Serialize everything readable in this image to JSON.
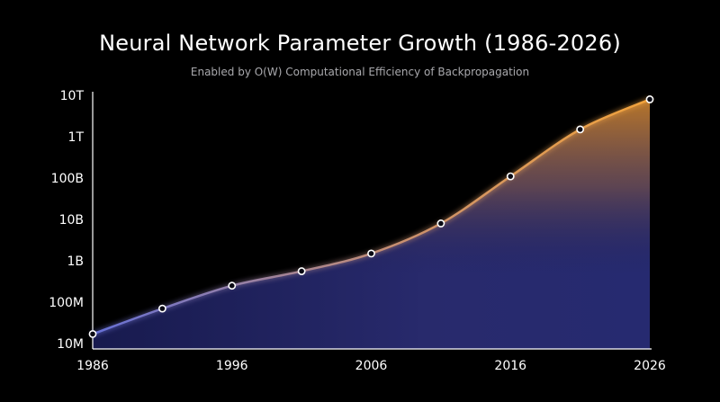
{
  "chart_data": {
    "type": "area",
    "title": "Neural Network Parameter Growth (1986-2026)",
    "subtitle": "Enabled by O(W) Computational Efficiency of Backpropagation",
    "xlabel": "",
    "ylabel": "",
    "x_ticks": [
      1986,
      1996,
      2006,
      2016,
      2026
    ],
    "y_ticks": [
      {
        "value": 10000000,
        "label": "10M"
      },
      {
        "value": 100000000,
        "label": "100M"
      },
      {
        "value": 1000000000,
        "label": "1B"
      },
      {
        "value": 10000000000,
        "label": "10B"
      },
      {
        "value": 100000000000,
        "label": "100B"
      },
      {
        "value": 1000000000000,
        "label": "1T"
      },
      {
        "value": 10000000000000,
        "label": "10T"
      }
    ],
    "y_scale": "log",
    "xlim": [
      1986,
      2026
    ],
    "ylim": [
      10000000,
      10000000000000
    ],
    "grid": false,
    "points": [
      {
        "x": 1986,
        "y": 17000000
      },
      {
        "x": 1991,
        "y": 70000000
      },
      {
        "x": 1996,
        "y": 250000000
      },
      {
        "x": 2001,
        "y": 560000000
      },
      {
        "x": 2006,
        "y": 1500000000
      },
      {
        "x": 2011,
        "y": 8000000000
      },
      {
        "x": 2016,
        "y": 110000000000
      },
      {
        "x": 2021,
        "y": 1500000000000
      },
      {
        "x": 2026,
        "y": 8000000000000
      }
    ],
    "colors": {
      "line_start": "#6670d8",
      "line_mid": "#a88aa8",
      "line_end": "#f2a33c",
      "fill_blue": "#24286e",
      "fill_orange": "#a5651e",
      "marker_stroke": "#ffffff",
      "axis": "#ffffff"
    }
  }
}
